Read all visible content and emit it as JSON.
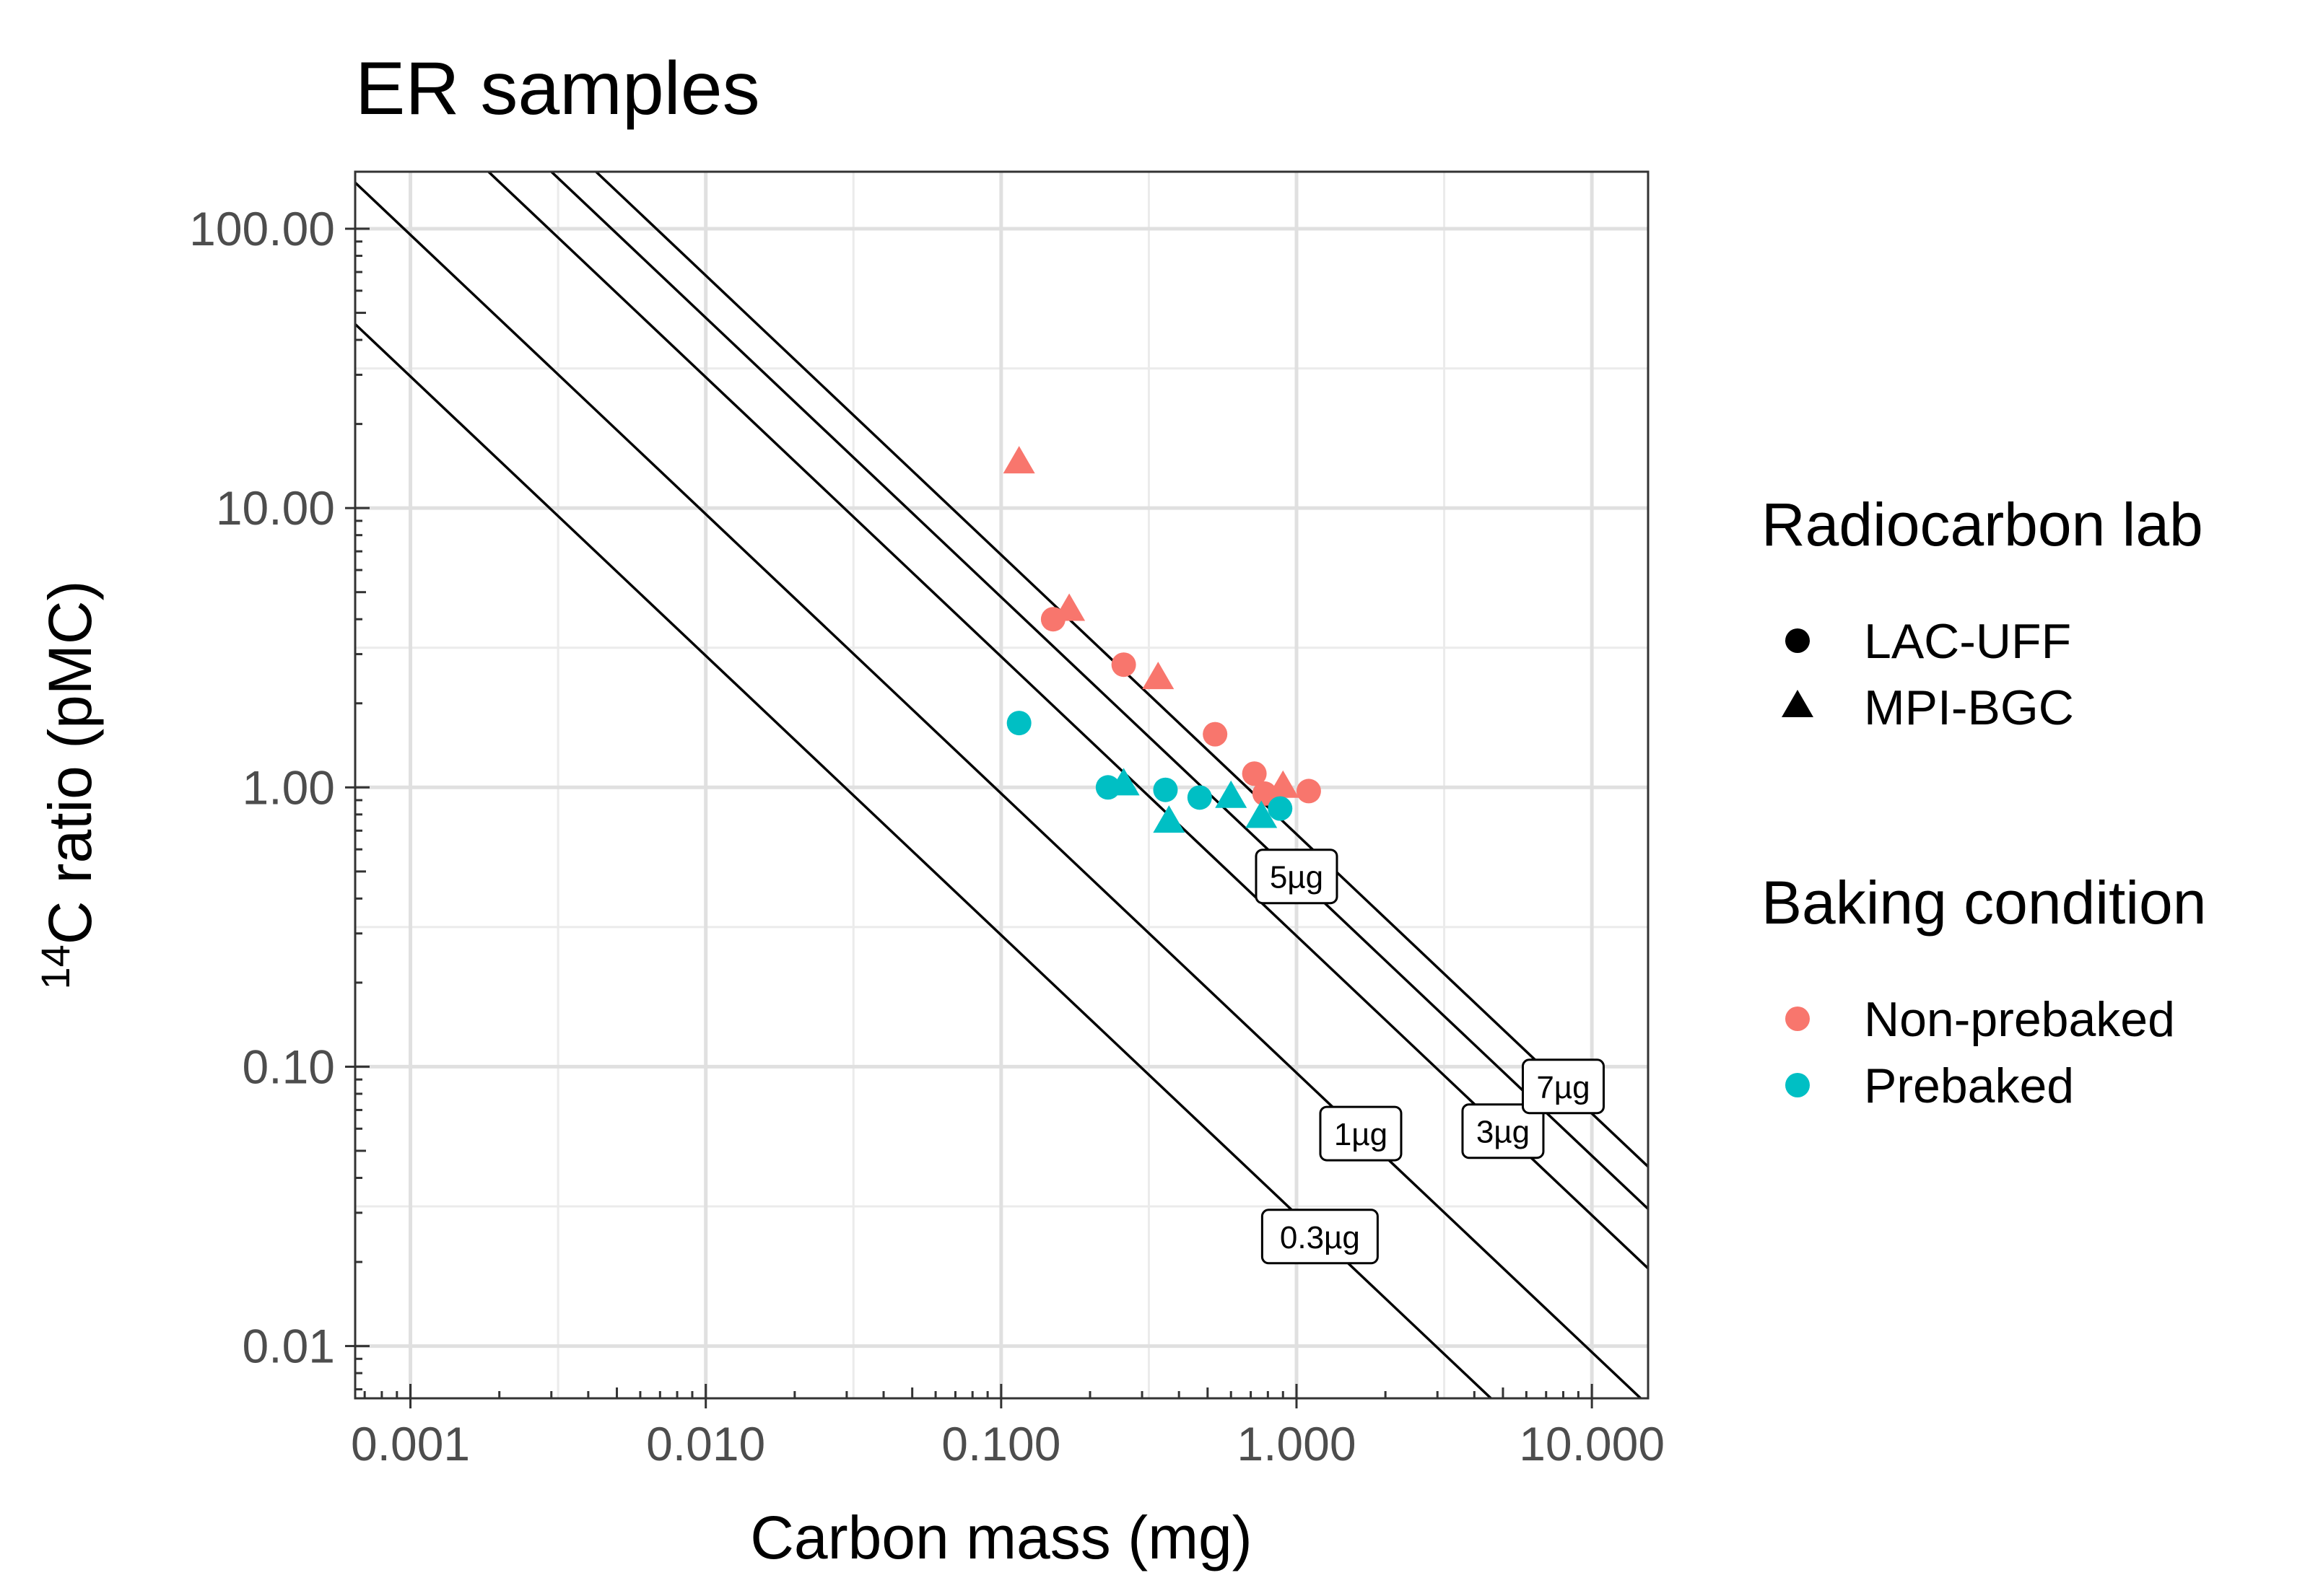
{
  "chart_data": {
    "type": "scatter",
    "title": "ER samples",
    "xlabel": "Carbon mass (mg)",
    "ylabel": "ratio (pMC)",
    "ylabel_prefix_sup": "14",
    "ylabel_prefix": "C",
    "xscale": "log",
    "yscale": "log",
    "xlim": [
      0.00065,
      15.5
    ],
    "ylim": [
      0.0065,
      160
    ],
    "x_ticks": [
      0.001,
      0.01,
      0.1,
      1,
      10
    ],
    "x_tick_labels": [
      "0.001",
      "0.010",
      "0.100",
      "1.000",
      "10.000"
    ],
    "y_ticks": [
      0.01,
      0.1,
      1,
      10,
      100
    ],
    "y_tick_labels": [
      "0.01",
      "0.10",
      "1.00",
      "10.00",
      "100.00"
    ],
    "grid": true,
    "reference_lines": [
      {
        "label": "0.3µg",
        "k": 0.0296,
        "label_x": 1.2
      },
      {
        "label": "1µg",
        "k": 0.0951,
        "label_x": 1.65
      },
      {
        "label": "3µg",
        "k": 0.294,
        "label_x": 5.0
      },
      {
        "label": "5µg",
        "k": 0.48,
        "label_x": 1.0
      },
      {
        "label": "7µg",
        "k": 0.68,
        "label_x": 8.0
      }
    ],
    "series": [
      {
        "name": "LAC-UFF / Non-prebaked",
        "lab": "LAC-UFF",
        "baking": "Non-prebaked",
        "shape": "circle",
        "color": "#F8766D",
        "points": [
          [
            0.15,
            4.0
          ],
          [
            0.26,
            2.75
          ],
          [
            0.53,
            1.55
          ],
          [
            0.72,
            1.12
          ],
          [
            0.78,
            0.95
          ],
          [
            1.1,
            0.97
          ]
        ]
      },
      {
        "name": "MPI-BGC / Non-prebaked",
        "lab": "MPI-BGC",
        "baking": "Non-prebaked",
        "shape": "triangle",
        "color": "#F8766D",
        "points": [
          [
            0.115,
            14.5
          ],
          [
            0.17,
            4.3
          ],
          [
            0.34,
            2.45
          ],
          [
            0.9,
            1.0
          ]
        ]
      },
      {
        "name": "LAC-UFF / Prebaked",
        "lab": "LAC-UFF",
        "baking": "Prebaked",
        "shape": "circle",
        "color": "#00BFC4",
        "points": [
          [
            0.115,
            1.7
          ],
          [
            0.23,
            1.0
          ],
          [
            0.36,
            0.98
          ],
          [
            0.47,
            0.92
          ],
          [
            0.88,
            0.84
          ]
        ]
      },
      {
        "name": "MPI-BGC / Prebaked",
        "lab": "MPI-BGC",
        "baking": "Prebaked",
        "shape": "triangle",
        "color": "#00BFC4",
        "points": [
          [
            0.26,
            1.02
          ],
          [
            0.37,
            0.75
          ],
          [
            0.6,
            0.92
          ],
          [
            0.76,
            0.78
          ]
        ]
      }
    ],
    "legends": [
      {
        "title": "Radiocarbon lab",
        "items": [
          {
            "label": "LAC-UFF",
            "shape": "circle",
            "color": "#000000"
          },
          {
            "label": "MPI-BGC",
            "shape": "triangle",
            "color": "#000000"
          }
        ]
      },
      {
        "title": "Baking condition",
        "items": [
          {
            "label": "Non-prebaked",
            "shape": "circle",
            "color": "#F8766D"
          },
          {
            "label": "Prebaked",
            "shape": "circle",
            "color": "#00BFC4"
          }
        ]
      }
    ],
    "legend_position": "right"
  }
}
